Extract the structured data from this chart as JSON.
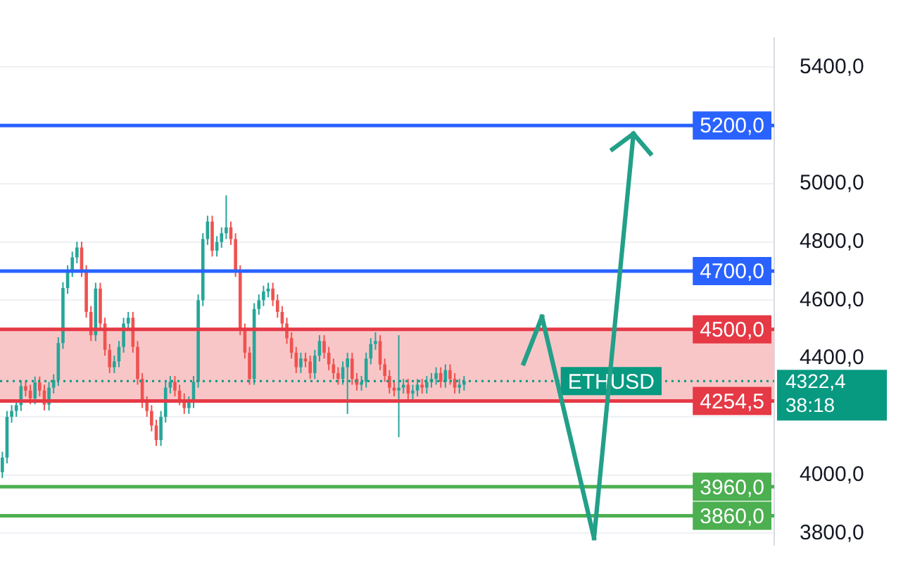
{
  "chart_data": {
    "type": "candlestick",
    "categories": [
      null,
      null,
      null,
      null,
      null,
      null,
      null,
      null,
      null,
      null,
      null,
      null,
      null,
      null,
      null,
      null,
      null,
      null,
      null,
      null,
      null,
      null,
      null,
      null,
      null,
      null,
      null,
      null,
      null,
      null,
      null,
      null,
      null,
      null,
      null,
      null,
      null,
      null,
      null,
      null,
      null,
      null,
      null,
      null,
      null,
      null,
      null,
      null,
      null,
      null,
      null,
      null,
      null,
      null,
      null,
      null,
      null,
      null,
      null,
      null,
      null,
      null,
      null,
      null,
      null,
      null,
      null,
      null,
      null,
      null,
      null,
      null,
      null,
      null,
      null,
      null,
      null,
      null,
      null,
      null,
      null,
      null,
      null,
      null,
      null,
      null,
      null,
      null,
      null,
      null,
      null,
      null,
      null,
      null,
      null,
      null,
      null,
      null,
      null,
      null,
      null,
      null,
      null,
      null,
      null,
      null,
      null,
      null,
      null,
      null,
      null,
      null,
      null,
      null,
      null,
      null,
      null,
      null,
      null,
      null,
      null,
      null,
      null,
      null,
      null,
      null,
      null,
      null,
      null,
      null,
      null,
      null,
      null,
      null,
      null,
      null,
      null,
      null,
      null,
      null,
      null,
      null,
      null,
      null,
      null,
      null,
      null,
      null,
      null,
      null,
      null,
      null,
      null,
      null,
      null,
      null,
      null,
      null,
      null,
      null,
      null,
      null,
      null,
      null,
      null,
      null
    ],
    "ohlc": [
      [
        4010,
        4080,
        3990,
        4060
      ],
      [
        4060,
        4220,
        4040,
        4200
      ],
      [
        4200,
        4240,
        4180,
        4220
      ],
      [
        4220,
        4260,
        4200,
        4240
      ],
      [
        4240,
        4325,
        4220,
        4305
      ],
      [
        4305,
        4325,
        4270,
        4290
      ],
      [
        4290,
        4310,
        4243,
        4263
      ],
      [
        4263,
        4338,
        4243,
        4318
      ],
      [
        4318,
        4338,
        4270,
        4290
      ],
      [
        4290,
        4310,
        4222,
        4242
      ],
      [
        4242,
        4320,
        4222,
        4300
      ],
      [
        4300,
        4346,
        4280,
        4326
      ],
      [
        4326,
        4473,
        4306,
        4453
      ],
      [
        4453,
        4662,
        4433,
        4642
      ],
      [
        4642,
        4720,
        4622,
        4700
      ],
      [
        4700,
        4767,
        4680,
        4747
      ],
      [
        4747,
        4801,
        4727,
        4781
      ],
      [
        4781,
        4801,
        4680,
        4700
      ],
      [
        4700,
        4720,
        4540,
        4560
      ],
      [
        4560,
        4580,
        4460,
        4480
      ],
      [
        4480,
        4660,
        4460,
        4640
      ],
      [
        4640,
        4660,
        4500,
        4520
      ],
      [
        4520,
        4540,
        4410,
        4430
      ],
      [
        4430,
        4450,
        4350,
        4370
      ],
      [
        4370,
        4410,
        4350,
        4390
      ],
      [
        4390,
        4460,
        4370,
        4440
      ],
      [
        4440,
        4540,
        4420,
        4520
      ],
      [
        4520,
        4560,
        4500,
        4540
      ],
      [
        4540,
        4560,
        4420,
        4440
      ],
      [
        4440,
        4460,
        4310,
        4330
      ],
      [
        4330,
        4350,
        4230,
        4250
      ],
      [
        4250,
        4270,
        4200,
        4220
      ],
      [
        4220,
        4240,
        4150,
        4170
      ],
      [
        4170,
        4190,
        4100,
        4120
      ],
      [
        4120,
        4220,
        4100,
        4200
      ],
      [
        4200,
        4320,
        4180,
        4300
      ],
      [
        4300,
        4340,
        4280,
        4320
      ],
      [
        4320,
        4340,
        4270,
        4290
      ],
      [
        4290,
        4310,
        4240,
        4260
      ],
      [
        4260,
        4280,
        4210,
        4230
      ],
      [
        4230,
        4270,
        4210,
        4250
      ],
      [
        4250,
        4340,
        4230,
        4320
      ],
      [
        4320,
        4620,
        4300,
        4600
      ],
      [
        4600,
        4830,
        4580,
        4810
      ],
      [
        4810,
        4890,
        4790,
        4870
      ],
      [
        4870,
        4890,
        4750,
        4770
      ],
      [
        4770,
        4820,
        4750,
        4800
      ],
      [
        4800,
        4850,
        4780,
        4830
      ],
      [
        4830,
        4960,
        4810,
        4850
      ],
      [
        4850,
        4870,
        4790,
        4810
      ],
      [
        4810,
        4830,
        4680,
        4700
      ],
      [
        4700,
        4720,
        4480,
        4500
      ],
      [
        4500,
        4520,
        4400,
        4420
      ],
      [
        4420,
        4440,
        4310,
        4330
      ],
      [
        4330,
        4590,
        4310,
        4570
      ],
      [
        4570,
        4620,
        4550,
        4600
      ],
      [
        4600,
        4650,
        4580,
        4630
      ],
      [
        4630,
        4660,
        4610,
        4640
      ],
      [
        4640,
        4660,
        4580,
        4600
      ],
      [
        4600,
        4620,
        4540,
        4560
      ],
      [
        4560,
        4580,
        4500,
        4520
      ],
      [
        4520,
        4540,
        4450,
        4470
      ],
      [
        4470,
        4490,
        4400,
        4420
      ],
      [
        4420,
        4440,
        4350,
        4370
      ],
      [
        4370,
        4420,
        4350,
        4400
      ],
      [
        4400,
        4420,
        4370,
        4390
      ],
      [
        4390,
        4410,
        4330,
        4350
      ],
      [
        4350,
        4430,
        4330,
        4410
      ],
      [
        4410,
        4480,
        4390,
        4460
      ],
      [
        4460,
        4480,
        4400,
        4420
      ],
      [
        4420,
        4440,
        4360,
        4380
      ],
      [
        4380,
        4400,
        4330,
        4350
      ],
      [
        4350,
        4370,
        4310,
        4330
      ],
      [
        4330,
        4390,
        4310,
        4370
      ],
      [
        4370,
        4420,
        4210,
        4400
      ],
      [
        4400,
        4420,
        4310,
        4330
      ],
      [
        4330,
        4350,
        4290,
        4310
      ],
      [
        4310,
        4340,
        4290,
        4320
      ],
      [
        4320,
        4420,
        4300,
        4400
      ],
      [
        4400,
        4470,
        4380,
        4450
      ],
      [
        4450,
        4490,
        4430,
        4460
      ],
      [
        4460,
        4480,
        4360,
        4380
      ],
      [
        4380,
        4400,
        4320,
        4340
      ],
      [
        4340,
        4360,
        4280,
        4300
      ],
      [
        4300,
        4320,
        4270,
        4290
      ],
      [
        4290,
        4480,
        4130,
        4300
      ],
      [
        4300,
        4330,
        4280,
        4310
      ],
      [
        4310,
        4330,
        4260,
        4280
      ],
      [
        4280,
        4310,
        4260,
        4290
      ],
      [
        4290,
        4330,
        4270,
        4310
      ],
      [
        4310,
        4330,
        4280,
        4300
      ],
      [
        4300,
        4340,
        4280,
        4320
      ],
      [
        4320,
        4350,
        4300,
        4330
      ],
      [
        4330,
        4370,
        4310,
        4350
      ],
      [
        4350,
        4370,
        4300,
        4320
      ],
      [
        4320,
        4380,
        4300,
        4360
      ],
      [
        4360,
        4380,
        4310,
        4330
      ],
      [
        4330,
        4350,
        4280,
        4300
      ],
      [
        4300,
        4330,
        4280,
        4310
      ],
      [
        4310,
        4340,
        4290,
        4322.4
      ],
      null,
      null,
      null,
      null,
      null,
      null,
      null,
      null,
      null,
      null,
      null,
      null,
      null,
      null,
      null,
      null,
      null,
      null,
      null,
      null,
      null,
      null,
      null,
      null,
      null,
      null,
      null,
      null,
      null,
      null,
      null,
      null,
      null,
      null,
      null,
      null,
      null,
      null,
      null,
      null,
      null,
      null,
      null,
      null,
      null,
      null,
      null,
      null,
      null,
      null,
      null,
      null,
      null,
      null,
      null,
      null,
      null,
      null,
      null,
      null,
      null,
      null,
      null,
      null,
      null,
      null
    ],
    "ylim": [
      3760,
      5500
    ],
    "yticks": [
      {
        "value": 3800,
        "label": "3800,0"
      },
      {
        "value": 4000,
        "label": "4000,0"
      },
      {
        "value": 4200,
        "label": null
      },
      {
        "value": 4400,
        "label": "4400,0"
      },
      {
        "value": 4600,
        "label": "4600,0"
      },
      {
        "value": 4800,
        "label": "4800,0"
      },
      {
        "value": 5000,
        "label": "5000,0"
      },
      {
        "value": 5200,
        "label": null
      },
      {
        "value": 5400,
        "label": "5400,0"
      }
    ],
    "grid": "y",
    "legend": false,
    "bands": [
      {
        "axis": "y",
        "from": 4254.5,
        "to": 4500,
        "color": "#f9c6c8"
      }
    ],
    "ref_lines": [
      {
        "axis": "y",
        "value": 5200,
        "label": "5200,0",
        "color": "#2962ff"
      },
      {
        "axis": "y",
        "value": 4700,
        "label": "4700,0",
        "color": "#2962ff"
      },
      {
        "axis": "y",
        "value": 4500,
        "label": "4500,0",
        "color": "#e53945"
      },
      {
        "axis": "y",
        "value": 4254.5,
        "label": "4254,5",
        "color": "#e53945"
      },
      {
        "axis": "y",
        "value": 3960,
        "label": "3960,0",
        "color": "#4caf50"
      },
      {
        "axis": "y",
        "value": 3860,
        "label": "3860,0",
        "color": "#4caf50"
      },
      {
        "axis": "y",
        "value": 4322.4,
        "label": "ETHUSD",
        "color": "#089981",
        "line_style": "dotted"
      }
    ],
    "annotations": [
      "4322,4",
      "38:18"
    ]
  }
}
